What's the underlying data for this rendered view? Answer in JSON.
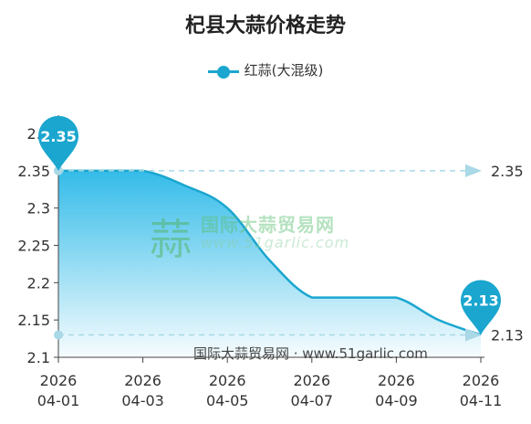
{
  "title": "杞县大蒜价格走势",
  "legend": {
    "label": "红蒜(大混级)"
  },
  "watermark": {
    "cn": "国际大蒜贸易网",
    "url": "www.51garlic.com"
  },
  "source": "国际大蒜贸易网 · www.51garlic.com",
  "colors": {
    "line": "#1aa6cf",
    "fill": "#29b8e8",
    "axis": "#444444",
    "guide": "#a9d8e6"
  },
  "chart_data": {
    "type": "area",
    "title": "杞县大蒜价格走势",
    "series": [
      {
        "name": "红蒜(大混级)",
        "x": [
          "2026-04-01",
          "2026-04-02",
          "2026-04-03",
          "2026-04-04",
          "2026-04-05",
          "2026-04-06",
          "2026-04-07",
          "2026-04-08",
          "2026-04-09",
          "2026-04-10",
          "2026-04-11"
        ],
        "values": [
          2.35,
          2.35,
          2.35,
          2.33,
          2.3,
          2.23,
          2.18,
          2.18,
          2.18,
          2.15,
          2.13
        ]
      }
    ],
    "x_tick_labels": [
      {
        "year": "2026",
        "date": "04-01"
      },
      {
        "year": "2026",
        "date": "04-03"
      },
      {
        "year": "2026",
        "date": "04-05"
      },
      {
        "year": "2026",
        "date": "04-07"
      },
      {
        "year": "2026",
        "date": "04-09"
      },
      {
        "year": "2026",
        "date": "04-11"
      }
    ],
    "y_tick_labels": [
      "2.1",
      "2.15",
      "2.2",
      "2.25",
      "2.3",
      "2.35",
      "2.4"
    ],
    "y_tick_values": [
      2.1,
      2.15,
      2.2,
      2.25,
      2.3,
      2.35,
      2.4
    ],
    "ylim": [
      2.1,
      2.4
    ],
    "max": {
      "value": 2.35,
      "label": "2.35"
    },
    "min": {
      "value": 2.13,
      "label": "2.13"
    },
    "markline_labels": [
      "2.35",
      "2.13"
    ],
    "grid": false,
    "legend_position": "top"
  }
}
